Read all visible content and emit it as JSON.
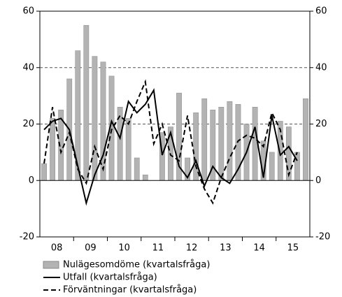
{
  "chart_data": {
    "type": "bar_line",
    "categories": [
      null,
      "08",
      null,
      null,
      null,
      "09",
      null,
      null,
      null,
      "10",
      null,
      null,
      null,
      "11",
      null,
      null,
      null,
      "12",
      null,
      null,
      null,
      "13",
      null,
      null,
      null,
      "14",
      null,
      null,
      null,
      "15",
      null,
      null
    ],
    "series": [
      {
        "name": "Nulägesomdöme (kvartalsfråga)",
        "type": "bar",
        "color": "#b3b3b3",
        "values": [
          6,
          22,
          25,
          36,
          46,
          55,
          44,
          42,
          37,
          26,
          22,
          8,
          2,
          0,
          17,
          19,
          31,
          8,
          24,
          29,
          25,
          26,
          28,
          27,
          20,
          26,
          14,
          10,
          21,
          19,
          10,
          29
        ]
      },
      {
        "name": "Utfall (kvartalsfråga)",
        "type": "line",
        "color": "#000000",
        "dash": "solid",
        "values": [
          18,
          21,
          22,
          18,
          5,
          -8,
          2,
          9,
          21,
          15,
          28,
          24,
          27,
          32,
          9,
          17,
          5,
          1,
          7,
          -2,
          5,
          1,
          -1,
          4,
          10,
          19,
          1,
          23,
          9,
          12,
          7,
          null
        ]
      },
      {
        "name": "Förväntningar (kvartalsfråga)",
        "type": "line",
        "color": "#000000",
        "dash": "dashed",
        "values": [
          6,
          26,
          10,
          17,
          4,
          -1,
          12,
          4,
          18,
          23,
          20,
          28,
          35,
          13,
          20,
          9,
          7,
          23,
          5,
          -3,
          -8,
          1,
          8,
          14,
          16,
          15,
          12,
          24,
          18,
          2,
          10,
          null
        ]
      }
    ],
    "ylim": [
      -20,
      60
    ],
    "yticks": [
      -20,
      0,
      20,
      40,
      60
    ],
    "y2lim": [
      -20,
      60
    ],
    "y2ticks": [
      -20,
      0,
      20,
      40,
      60
    ],
    "grid": true
  }
}
